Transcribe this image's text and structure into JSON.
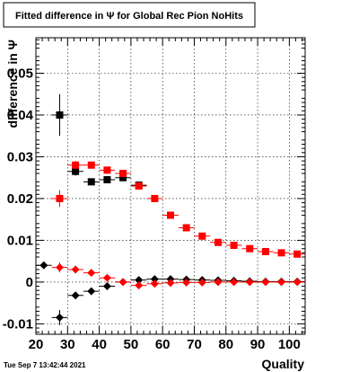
{
  "page": {
    "title": "Fitted difference in  Ψ  for Global Rec Pion NoHits",
    "footer": "Tue Sep  7 13:42:44 2021"
  },
  "chart_data": {
    "type": "scatter",
    "title": "Fitted difference in  Ψ  for Global Rec Pion NoHits",
    "xlabel": "Quality",
    "ylabel": "difference in  Ψ",
    "xlim": [
      20,
      105
    ],
    "ylim": [
      -0.0125,
      0.0585
    ],
    "xticks": [
      20,
      30,
      40,
      50,
      60,
      70,
      80,
      90,
      100
    ],
    "xtick_labels": [
      "20",
      "30",
      "40",
      "50",
      "60",
      "70",
      "80",
      "90",
      "100"
    ],
    "yticks": [
      -0.01,
      0,
      0.01,
      0.02,
      0.03,
      0.04,
      0.05
    ],
    "ytick_labels": [
      "-0.01",
      "0",
      "0.01",
      "0.02",
      "0.03",
      "0.04",
      "0.05"
    ],
    "grid": true,
    "series": [
      {
        "color": "#000000",
        "marker": "square",
        "x": [
          27.5,
          32.5,
          37.5,
          42.5,
          47.5,
          52.5
        ],
        "y": [
          0.04,
          0.0265,
          0.024,
          0.0245,
          0.025,
          0.0232
        ],
        "err": [
          0.005,
          0.001,
          0.0007,
          0.0006,
          0.0006,
          0.0005
        ]
      },
      {
        "color": "#ff0000",
        "marker": "square",
        "x": [
          27.5,
          32.5,
          37.5,
          42.5,
          47.5,
          52.5,
          57.5,
          62.5,
          67.5,
          72.5,
          77.5,
          82.5,
          87.5,
          92.5,
          97.5,
          102.5
        ],
        "y": [
          0.02,
          0.028,
          0.028,
          0.0268,
          0.026,
          0.023,
          0.02,
          0.016,
          0.013,
          0.011,
          0.0095,
          0.0088,
          0.008,
          0.0073,
          0.007,
          0.0067
        ],
        "err": [
          0.002,
          0.001,
          0.0007,
          0.0006,
          0.0005,
          0.0005,
          0.0004,
          0.0004,
          0.0003,
          0.0003,
          0.0003,
          0.0003,
          0.0003,
          0.0003,
          0.0003,
          0.0003
        ]
      },
      {
        "color": "#000000",
        "marker": "diamond",
        "x": [
          22.5,
          27.5,
          32.5,
          37.5,
          42.5,
          47.5,
          52.5,
          57.5,
          62.5,
          67.5,
          72.5,
          77.5,
          82.5,
          87.5,
          92.5,
          97.5,
          102.5
        ],
        "y": [
          0.004,
          -0.0085,
          -0.0032,
          -0.0022,
          -0.001,
          0.0,
          0.0005,
          0.0007,
          0.0007,
          0.0006,
          0.0005,
          0.0004,
          0.0003,
          0.0002,
          0.0001,
          0.0001,
          0.0001
        ],
        "err": [
          0.0008,
          0.0018,
          0.0008,
          0.0006,
          0.0005,
          0.0004,
          0.0004,
          0.0003,
          0.0003,
          0.0003,
          0.0003,
          0.0003,
          0.0003,
          0.0003,
          0.0003,
          0.0003,
          0.0003
        ]
      },
      {
        "color": "#ff0000",
        "marker": "diamond",
        "x": [
          27.5,
          32.5,
          37.5,
          42.5,
          47.5,
          52.5,
          57.5,
          62.5,
          67.5,
          72.5,
          77.5,
          82.5,
          87.5,
          92.5,
          97.5,
          102.5
        ],
        "y": [
          0.0035,
          0.003,
          0.0022,
          0.001,
          0.0,
          -0.0008,
          -0.0004,
          -0.0002,
          -0.0001,
          -0.0001,
          0.0,
          0.0,
          0.0,
          0.0,
          0.0,
          0.0
        ],
        "err": [
          0.0012,
          0.0007,
          0.0005,
          0.0004,
          0.0004,
          0.0004,
          0.0003,
          0.0003,
          0.0003,
          0.0003,
          0.0003,
          0.0003,
          0.0003,
          0.0003,
          0.0003,
          0.0003
        ]
      }
    ]
  }
}
